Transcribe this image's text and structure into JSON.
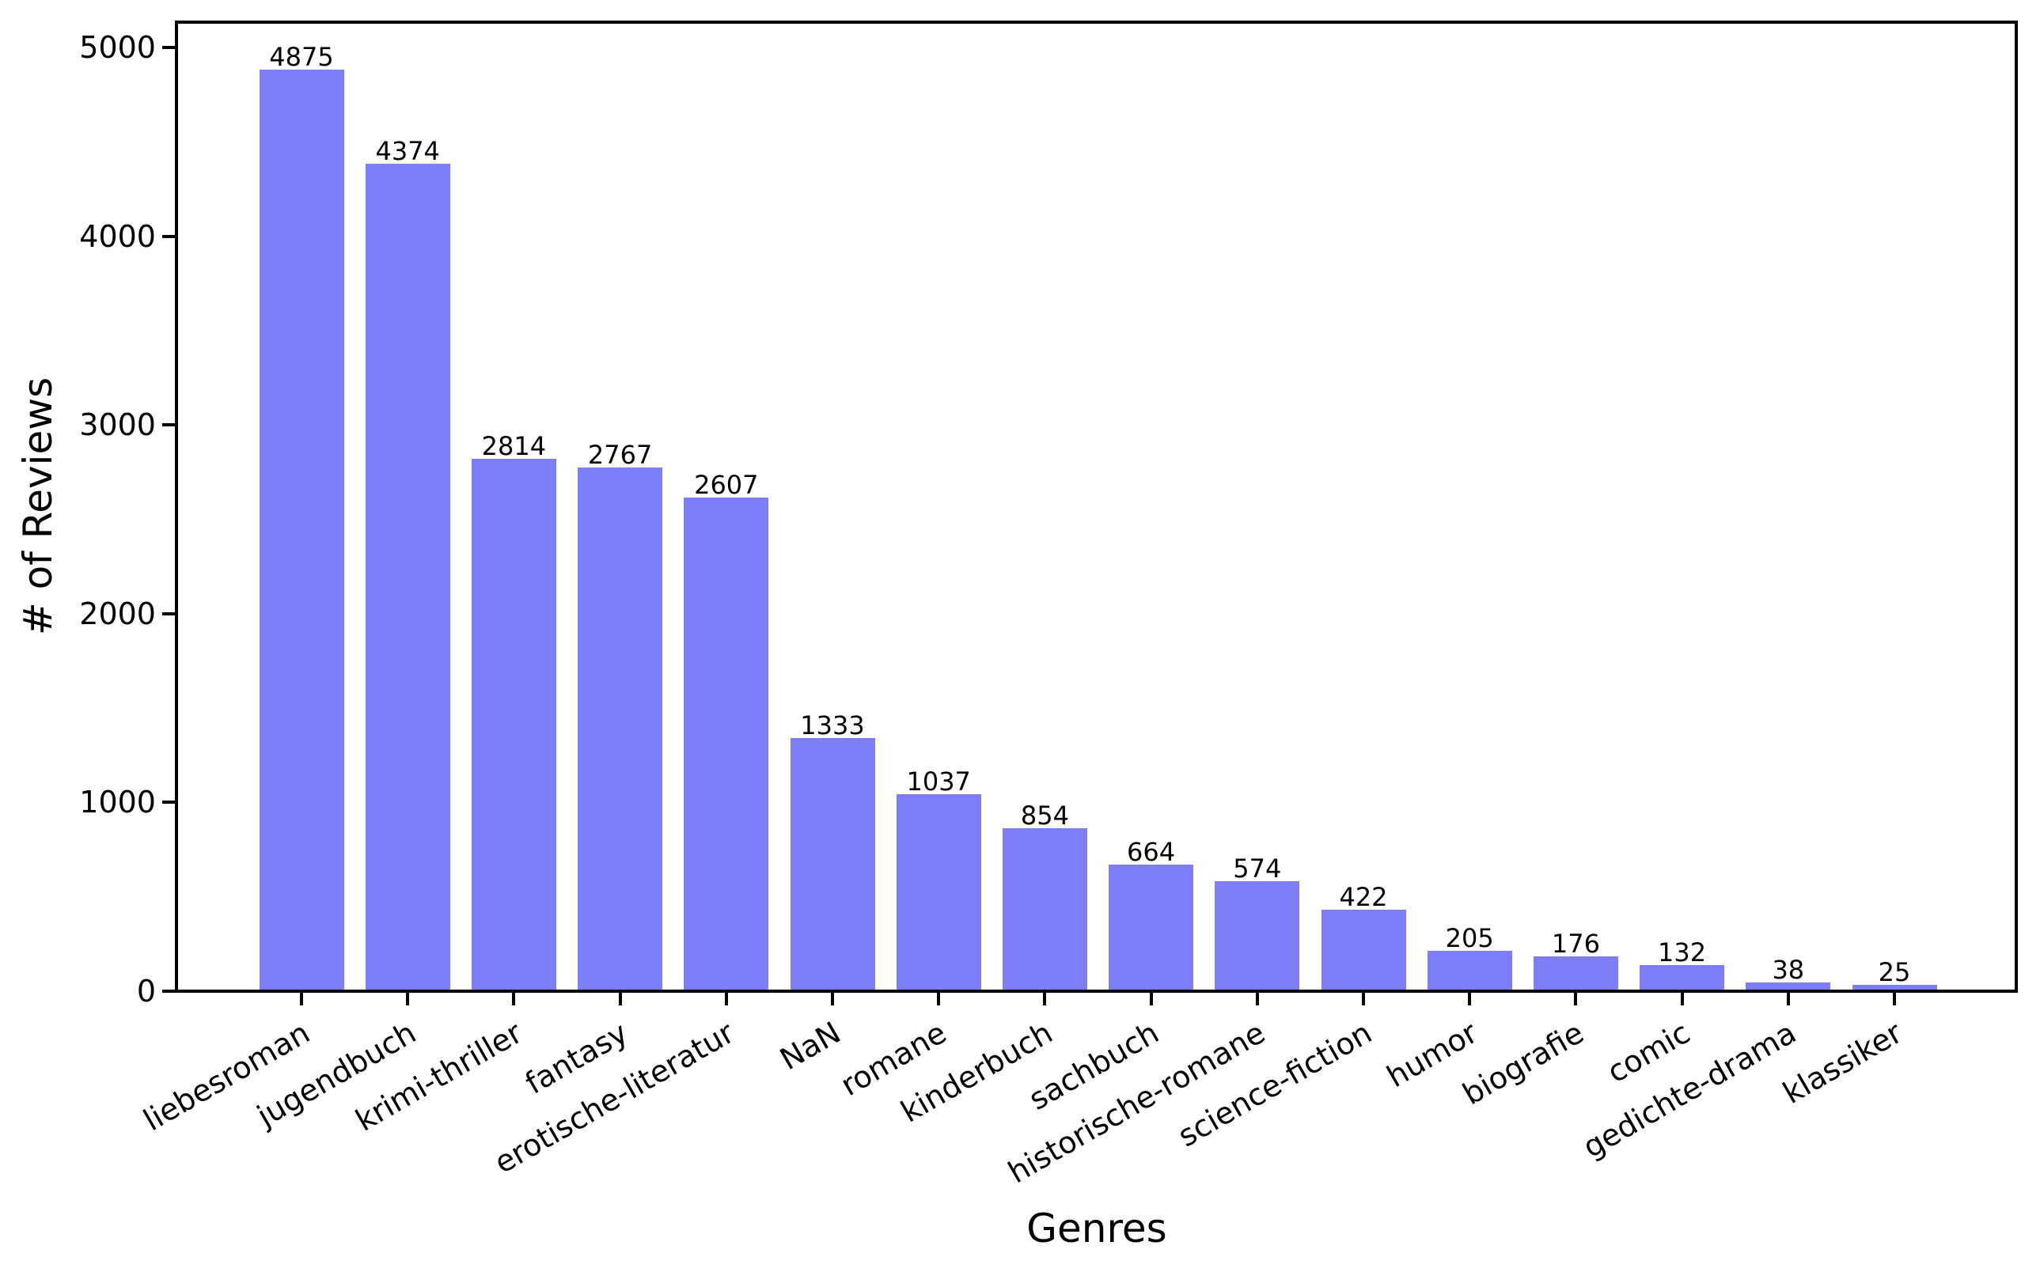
{
  "chart_data": {
    "type": "bar",
    "title": "",
    "xlabel": "Genres",
    "ylabel": "# of Reviews",
    "categories": [
      "liebesroman",
      "jugendbuch",
      "krimi-thriller",
      "fantasy",
      "erotische-literatur",
      "NaN",
      "romane",
      "kinderbuch",
      "sachbuch",
      "historische-romane",
      "science-fiction",
      "humor",
      "biografie",
      "comic",
      "gedichte-drama",
      "klassiker"
    ],
    "values": [
      4875,
      4374,
      2814,
      2767,
      2607,
      1333,
      1037,
      854,
      664,
      574,
      422,
      205,
      176,
      132,
      38,
      25
    ],
    "bar_labels": [
      4875,
      4374,
      2814,
      2767,
      2607,
      1333,
      1037,
      854,
      664,
      574,
      422,
      205,
      176,
      132,
      38,
      25
    ],
    "yticks": [
      0,
      1000,
      2000,
      3000,
      4000,
      5000
    ],
    "ylim": [
      0,
      5125
    ],
    "x_tick_rotation_deg": 30,
    "grid": false,
    "legend": false,
    "bar_color": "#7d7df7",
    "axis_color": "#000000",
    "text_color": "#000000",
    "background_color": "#ffffff"
  }
}
